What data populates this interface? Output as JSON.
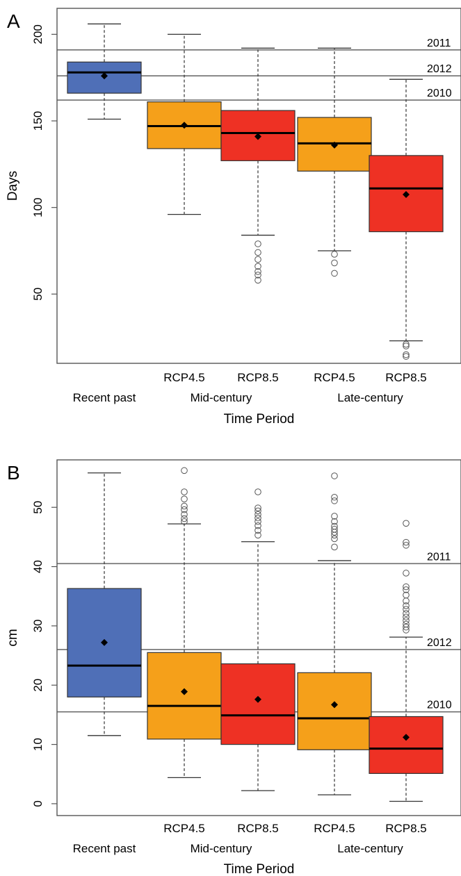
{
  "figure": {
    "colors": {
      "recent": "#4F6FB7",
      "rcp45": "#F5A01A",
      "rcp85": "#EE3124",
      "refline": "#6e6e6e",
      "median": "#000000"
    }
  },
  "chart_data": [
    {
      "type": "box",
      "panel_label": "A",
      "ylabel": "Days",
      "xlabel": "Time Period",
      "ylim": [
        10,
        215
      ],
      "yticks": [
        50,
        100,
        150,
        200
      ],
      "category_labels": [
        "Recent past",
        "RCP4.5",
        "RCP8.5",
        "RCP4.5",
        "RCP8.5"
      ],
      "group_labels": [
        {
          "label": "Mid-century",
          "categories": [
            1,
            2
          ]
        },
        {
          "label": "Late-century",
          "categories": [
            3,
            4
          ]
        }
      ],
      "reference_lines": [
        {
          "label": "2011",
          "value": 191
        },
        {
          "label": "2012",
          "value": 176
        },
        {
          "label": "2010",
          "value": 162
        }
      ],
      "boxes": [
        {
          "category": "Recent past",
          "scenario": "recent",
          "whisker_low": 151,
          "q1": 166,
          "median": 178,
          "q3": 184,
          "whisker_high": 206,
          "mean": 176,
          "outliers": []
        },
        {
          "category": "RCP4.5",
          "scenario": "rcp45",
          "whisker_low": 96,
          "q1": 134,
          "median": 147,
          "q3": 161,
          "whisker_high": 200,
          "mean": 147.5,
          "outliers": []
        },
        {
          "category": "RCP8.5",
          "scenario": "rcp85",
          "whisker_low": 84,
          "q1": 127,
          "median": 143,
          "q3": 156,
          "whisker_high": 192,
          "mean": 141,
          "outliers": [
            79,
            74,
            70,
            66,
            63,
            61,
            58
          ]
        },
        {
          "category": "RCP4.5",
          "scenario": "rcp45",
          "whisker_low": 75,
          "q1": 121,
          "median": 137,
          "q3": 152,
          "whisker_high": 192,
          "mean": 136,
          "outliers": [
            73,
            68,
            62
          ]
        },
        {
          "category": "RCP8.5",
          "scenario": "rcp85",
          "whisker_low": 23,
          "q1": 86,
          "median": 111,
          "q3": 130,
          "whisker_high": 174,
          "mean": 107.5,
          "outliers": [
            21,
            20,
            15,
            14
          ]
        }
      ]
    },
    {
      "type": "box",
      "panel_label": "B",
      "ylabel": "cm",
      "xlabel": "Time Period",
      "ylim": [
        -2,
        58
      ],
      "yticks": [
        0,
        10,
        20,
        30,
        40,
        50
      ],
      "category_labels": [
        "Recent past",
        "RCP4.5",
        "RCP8.5",
        "RCP4.5",
        "RCP8.5"
      ],
      "group_labels": [
        {
          "label": "Mid-century",
          "categories": [
            1,
            2
          ]
        },
        {
          "label": "Late-century",
          "categories": [
            3,
            4
          ]
        }
      ],
      "reference_lines": [
        {
          "label": "2011",
          "value": 40.5
        },
        {
          "label": "2012",
          "value": 26
        },
        {
          "label": "2010",
          "value": 15.5
        }
      ],
      "boxes": [
        {
          "category": "Recent past",
          "scenario": "recent",
          "whisker_low": 11.5,
          "q1": 18,
          "median": 23.3,
          "q3": 36.3,
          "whisker_high": 55.8,
          "mean": 27.2,
          "outliers": []
        },
        {
          "category": "RCP4.5",
          "scenario": "rcp45",
          "whisker_low": 4.4,
          "q1": 10.9,
          "median": 16.5,
          "q3": 25.5,
          "whisker_high": 47.2,
          "mean": 18.9,
          "outliers": [
            47.6,
            48.1,
            48.8,
            49.6,
            50.2,
            51.4,
            52.6,
            56.2
          ]
        },
        {
          "category": "RCP8.5",
          "scenario": "rcp85",
          "whisker_low": 2.2,
          "q1": 10,
          "median": 14.9,
          "q3": 23.6,
          "whisker_high": 44.2,
          "mean": 17.6,
          "outliers": [
            45.3,
            46.1,
            46.9,
            47.6,
            48.2,
            48.8,
            49.4,
            49.9,
            52.6
          ]
        },
        {
          "category": "RCP4.5",
          "scenario": "rcp45",
          "whisker_low": 1.5,
          "q1": 9.1,
          "median": 14.4,
          "q3": 22.1,
          "whisker_high": 41,
          "mean": 16.7,
          "outliers": [
            43.3,
            44.7,
            45.3,
            45.8,
            46.3,
            46.8,
            47.6,
            48.5,
            51.1,
            51.7,
            55.3
          ]
        },
        {
          "category": "RCP8.5",
          "scenario": "rcp85",
          "whisker_low": 0.4,
          "q1": 5.1,
          "median": 9.3,
          "q3": 14.7,
          "whisker_high": 28.1,
          "mean": 11.2,
          "outliers": [
            29.3,
            29.8,
            30.3,
            30.9,
            31.5,
            32.1,
            32.8,
            33.4,
            34.2,
            35.2,
            36.1,
            36.6,
            38.9,
            43.6,
            44.1,
            47.3
          ]
        }
      ]
    }
  ]
}
